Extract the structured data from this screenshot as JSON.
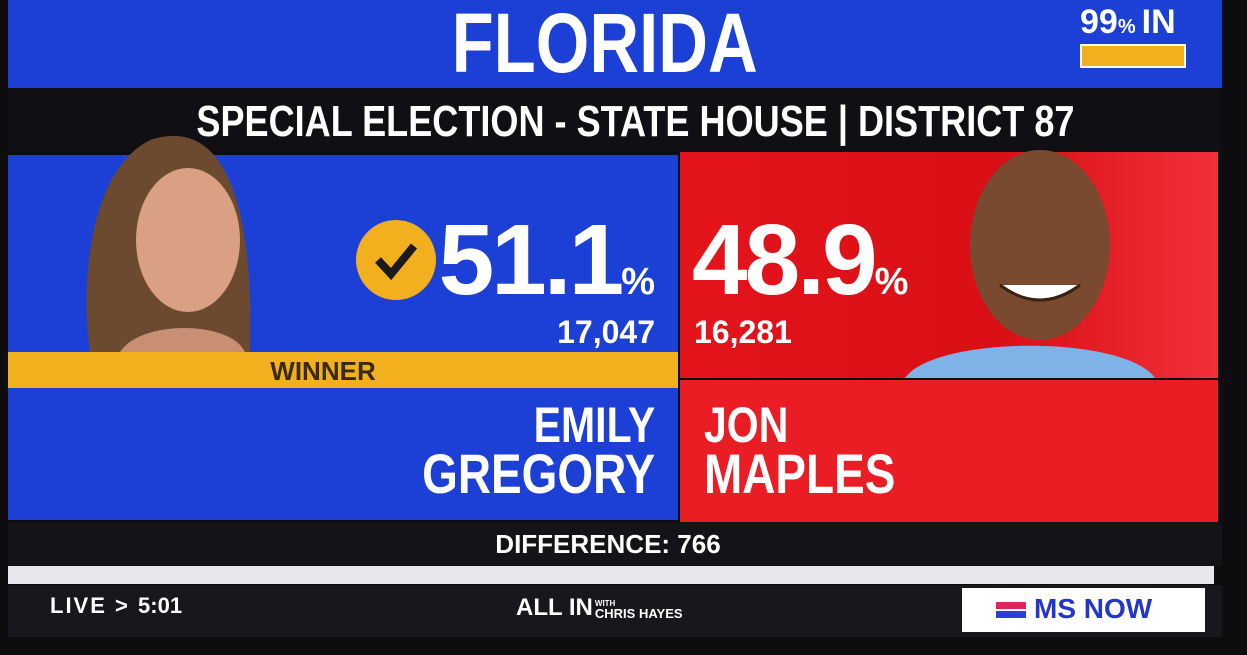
{
  "header": {
    "title": "FLORIDA",
    "reporting": {
      "value": "99",
      "unit": "%",
      "label": "IN"
    },
    "subtitle": "SPECIAL ELECTION - STATE HOUSE | DISTRICT 87"
  },
  "candidates": [
    {
      "first_name": "EMILY",
      "last_name": "GREGORY",
      "percent": "51.1",
      "percent_unit": "%",
      "votes": "17,047",
      "status": "WINNER"
    },
    {
      "first_name": "JON",
      "last_name": "MAPLES",
      "percent": "48.9",
      "percent_unit": "%",
      "votes": "16,281"
    }
  ],
  "difference": "DIFFERENCE: 766",
  "footer": {
    "live": "LIVE",
    "separator": ">",
    "time": "5:01",
    "show": "ALL IN",
    "show_with": "WITH",
    "host": "CHRIS HAYES",
    "network": "MS NOW"
  }
}
